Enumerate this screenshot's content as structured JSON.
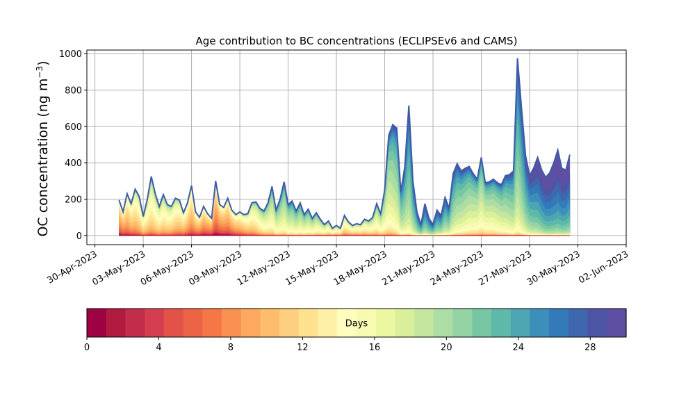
{
  "chart_data": {
    "type": "area",
    "title": "Age contribution to BC concentrations (ECLIPSEv6 and CAMS)",
    "ylabel": "OC concentration (ng m",
    "ylabel_sup": "−3",
    "ylabel_close": ")",
    "xlabel": "",
    "grid": true,
    "stacked": true,
    "x_date_range": [
      "2023-04-29T12:00",
      "2023-06-02T00:00"
    ],
    "xlim": [
      "2023-04-29T12:00",
      "2023-06-02T00:00"
    ],
    "ylim": [
      -50,
      1020
    ],
    "x_ticks": [
      "30-Apr-2023",
      "03-May-2023",
      "06-May-2023",
      "09-May-2023",
      "12-May-2023",
      "15-May-2023",
      "18-May-2023",
      "21-May-2023",
      "24-May-2023",
      "27-May-2023",
      "30-May-2023",
      "02-Jun-2023"
    ],
    "y_ticks": [
      0,
      200,
      400,
      600,
      800,
      1000
    ],
    "total_series": {
      "name": "",
      "points": [
        [
          "2023-05-01T12:00",
          195
        ],
        [
          "2023-05-01T18:00",
          130
        ],
        [
          "2023-05-02T00:00",
          230
        ],
        [
          "2023-05-02T06:00",
          175
        ],
        [
          "2023-05-02T12:00",
          255
        ],
        [
          "2023-05-02T18:00",
          215
        ],
        [
          "2023-05-03T00:00",
          105
        ],
        [
          "2023-05-03T06:00",
          200
        ],
        [
          "2023-05-03T12:00",
          325
        ],
        [
          "2023-05-03T18:00",
          230
        ],
        [
          "2023-05-04T00:00",
          160
        ],
        [
          "2023-05-04T06:00",
          225
        ],
        [
          "2023-05-04T12:00",
          170
        ],
        [
          "2023-05-04T18:00",
          160
        ],
        [
          "2023-05-05T00:00",
          205
        ],
        [
          "2023-05-05T06:00",
          195
        ],
        [
          "2023-05-05T12:00",
          125
        ],
        [
          "2023-05-05T18:00",
          180
        ],
        [
          "2023-05-06T00:00",
          275
        ],
        [
          "2023-05-06T06:00",
          130
        ],
        [
          "2023-05-06T12:00",
          100
        ],
        [
          "2023-05-06T18:00",
          160
        ],
        [
          "2023-05-07T00:00",
          120
        ],
        [
          "2023-05-07T06:00",
          95
        ],
        [
          "2023-05-07T12:00",
          300
        ],
        [
          "2023-05-07T18:00",
          170
        ],
        [
          "2023-05-08T00:00",
          155
        ],
        [
          "2023-05-08T06:00",
          205
        ],
        [
          "2023-05-08T12:00",
          140
        ],
        [
          "2023-05-08T18:00",
          115
        ],
        [
          "2023-05-09T00:00",
          130
        ],
        [
          "2023-05-09T06:00",
          115
        ],
        [
          "2023-05-09T12:00",
          120
        ],
        [
          "2023-05-09T18:00",
          180
        ],
        [
          "2023-05-10T00:00",
          185
        ],
        [
          "2023-05-10T06:00",
          150
        ],
        [
          "2023-05-10T12:00",
          135
        ],
        [
          "2023-05-10T18:00",
          180
        ],
        [
          "2023-05-11T00:00",
          270
        ],
        [
          "2023-05-11T06:00",
          140
        ],
        [
          "2023-05-11T12:00",
          200
        ],
        [
          "2023-05-11T18:00",
          295
        ],
        [
          "2023-05-12T00:00",
          170
        ],
        [
          "2023-05-12T06:00",
          190
        ],
        [
          "2023-05-12T12:00",
          135
        ],
        [
          "2023-05-12T18:00",
          180
        ],
        [
          "2023-05-13T00:00",
          115
        ],
        [
          "2023-05-13T06:00",
          145
        ],
        [
          "2023-05-13T12:00",
          95
        ],
        [
          "2023-05-13T18:00",
          125
        ],
        [
          "2023-05-14T00:00",
          90
        ],
        [
          "2023-05-14T06:00",
          60
        ],
        [
          "2023-05-14T12:00",
          80
        ],
        [
          "2023-05-14T18:00",
          40
        ],
        [
          "2023-05-15T00:00",
          55
        ],
        [
          "2023-05-15T06:00",
          40
        ],
        [
          "2023-05-15T12:00",
          110
        ],
        [
          "2023-05-15T18:00",
          75
        ],
        [
          "2023-05-16T00:00",
          55
        ],
        [
          "2023-05-16T06:00",
          65
        ],
        [
          "2023-05-16T12:00",
          60
        ],
        [
          "2023-05-16T18:00",
          90
        ],
        [
          "2023-05-17T00:00",
          80
        ],
        [
          "2023-05-17T06:00",
          100
        ],
        [
          "2023-05-17T12:00",
          175
        ],
        [
          "2023-05-17T18:00",
          120
        ],
        [
          "2023-05-18T00:00",
          250
        ],
        [
          "2023-05-18T06:00",
          550
        ],
        [
          "2023-05-18T12:00",
          610
        ],
        [
          "2023-05-18T18:00",
          590
        ],
        [
          "2023-05-19T00:00",
          240
        ],
        [
          "2023-05-19T06:00",
          380
        ],
        [
          "2023-05-19T12:00",
          715
        ],
        [
          "2023-05-19T18:00",
          300
        ],
        [
          "2023-05-20T00:00",
          130
        ],
        [
          "2023-05-20T06:00",
          60
        ],
        [
          "2023-05-20T12:00",
          175
        ],
        [
          "2023-05-20T18:00",
          95
        ],
        [
          "2023-05-21T00:00",
          60
        ],
        [
          "2023-05-21T06:00",
          140
        ],
        [
          "2023-05-21T12:00",
          110
        ],
        [
          "2023-05-21T18:00",
          210
        ],
        [
          "2023-05-22T00:00",
          150
        ],
        [
          "2023-05-22T06:00",
          340
        ],
        [
          "2023-05-22T12:00",
          395
        ],
        [
          "2023-05-22T18:00",
          355
        ],
        [
          "2023-05-23T00:00",
          370
        ],
        [
          "2023-05-23T06:00",
          380
        ],
        [
          "2023-05-23T12:00",
          340
        ],
        [
          "2023-05-23T18:00",
          310
        ],
        [
          "2023-05-24T00:00",
          430
        ],
        [
          "2023-05-24T06:00",
          290
        ],
        [
          "2023-05-24T12:00",
          295
        ],
        [
          "2023-05-24T18:00",
          310
        ],
        [
          "2023-05-25T00:00",
          290
        ],
        [
          "2023-05-25T06:00",
          280
        ],
        [
          "2023-05-25T12:00",
          330
        ],
        [
          "2023-05-25T18:00",
          335
        ],
        [
          "2023-05-26T00:00",
          355
        ],
        [
          "2023-05-26T06:00",
          975
        ],
        [
          "2023-05-26T12:00",
          700
        ],
        [
          "2023-05-26T18:00",
          440
        ],
        [
          "2023-05-27T00:00",
          330
        ],
        [
          "2023-05-27T06:00",
          370
        ],
        [
          "2023-05-27T12:00",
          430
        ],
        [
          "2023-05-27T18:00",
          360
        ],
        [
          "2023-05-28T00:00",
          320
        ],
        [
          "2023-05-28T06:00",
          345
        ],
        [
          "2023-05-28T12:00",
          400
        ],
        [
          "2023-05-28T18:00",
          470
        ],
        [
          "2023-05-29T00:00",
          370
        ],
        [
          "2023-05-29T06:00",
          360
        ],
        [
          "2023-05-29T12:00",
          445
        ]
      ]
    },
    "colorbar": {
      "label": "Days",
      "range": [
        0,
        30
      ],
      "ticks": [
        0,
        4,
        8,
        12,
        16,
        20,
        24,
        28
      ],
      "colormap": "Spectral",
      "colors": [
        "#9e0142",
        "#b2193f",
        "#c42c4b",
        "#d53e4f",
        "#e25249",
        "#ec6445",
        "#f57748",
        "#f99153",
        "#fca85e",
        "#fdbd6d",
        "#fdd07f",
        "#fee18f",
        "#fff0a8",
        "#fffebe",
        "#f7fbb1",
        "#ecf7a2",
        "#d9ef9b",
        "#c4e69e",
        "#abdda4",
        "#93d3a4",
        "#77c7a5",
        "#5fb9a8",
        "#4ca5b1",
        "#3c8fbb",
        "#3479b8",
        "#3f67ad",
        "#4e55a6",
        "#5e4fa2"
      ]
    }
  }
}
